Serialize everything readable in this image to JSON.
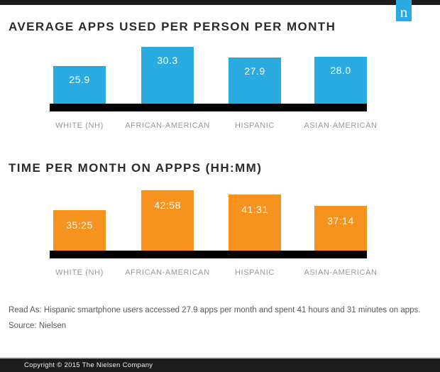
{
  "brand": {
    "logo_letter": "n",
    "logo_bg_color": "#29ABE2"
  },
  "chart_data": [
    {
      "type": "bar",
      "title": "AVERAGE APPS USED PER PERSON PER MONTH",
      "categories": [
        "WHITE (NH)",
        "AFRICAN-AMERICAN",
        "HISPANIC",
        "ASIAN-AMERICAN"
      ],
      "values": [
        25.9,
        30.3,
        27.9,
        28.0
      ],
      "data_labels": [
        "25.9",
        "30.3",
        "27.9",
        "28.0"
      ],
      "bar_color": "#29ABE2",
      "baseline_color": "#000000",
      "grid": false,
      "y_axis_shown": false,
      "legend": "none"
    },
    {
      "type": "bar",
      "title": "TIME PER MONTH ON APPPS (HH:MM)",
      "categories": [
        "WHITE (NH)",
        "AFRICAN-AMERICAN",
        "HISPANIC",
        "ASIAN-AMERICAN"
      ],
      "values_hhmm": [
        "35:25",
        "42:58",
        "41:31",
        "37:14"
      ],
      "values_minutes": [
        2125,
        2578,
        2491,
        2234
      ],
      "data_labels": [
        "35:25",
        "42:58",
        "41:31",
        "37:14"
      ],
      "bar_color": "#F6921E",
      "baseline_color": "#000000",
      "grid": false,
      "y_axis_shown": false,
      "legend": "none"
    }
  ],
  "footnotes": {
    "read_as": "Read As: Hispanic smartphone users accessed 27.9 apps per month and spent 41 hours and 31 minutes on apps.",
    "source": "Source: Nielsen"
  },
  "footer": {
    "copyright": "Copyright © 2015 The Nielsen Company"
  }
}
